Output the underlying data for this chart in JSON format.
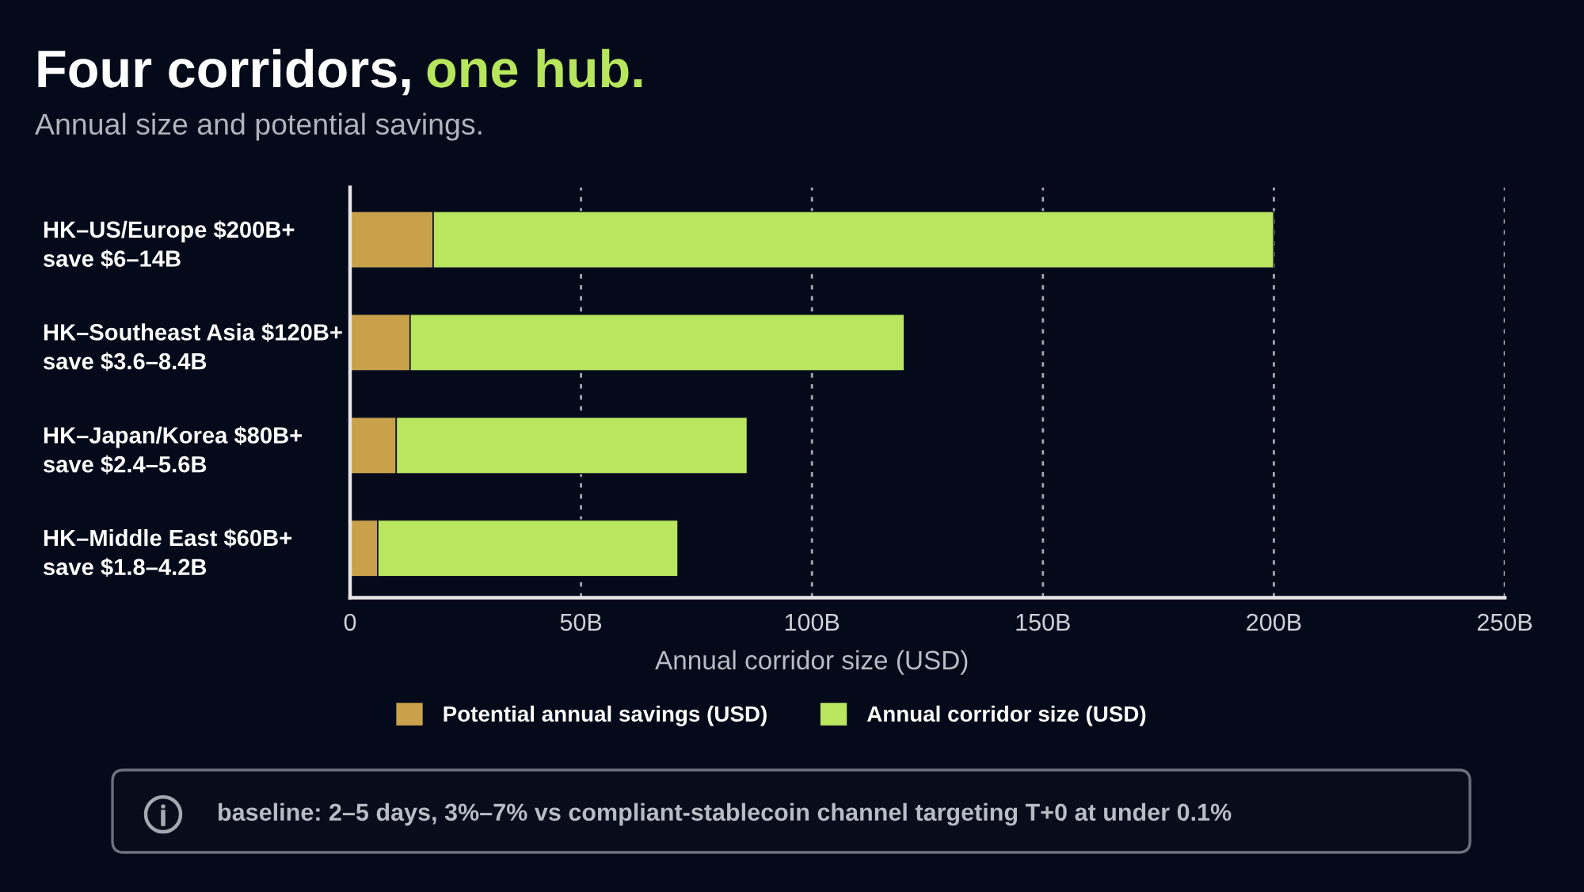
{
  "chart_data": {
    "type": "bar",
    "orientation": "horizontal",
    "stacked": true,
    "title": "Four corridors, one hub.",
    "subtitle": "Annual size and potential savings.",
    "xlabel": "Annual corridor size (USD)",
    "categories": [
      "HK–US/Europe $200B+\nsave $6–14B",
      "HK–Southeast Asia $120B+\nsave $3.6–8.4B",
      "HK–Japan/Korea $80B+\nsave $2.4–5.6B",
      "HK–Middle East $60B+\nsave $1.8–4.2B"
    ],
    "series": [
      {
        "name": "Potential annual savings (USD)",
        "color": "#c9a14b",
        "values": [
          18,
          13,
          10,
          6
        ]
      },
      {
        "name": "Annual corridor size (USD)",
        "color": "#b9e55f",
        "values": [
          182,
          107,
          76,
          65
        ]
      }
    ],
    "xlim": [
      0,
      250
    ],
    "xticks": [
      0,
      {
        "value": 50,
        "label": "50B"
      },
      {
        "value": 100,
        "label": "100B"
      },
      {
        "value": 150,
        "label": "150B"
      },
      {
        "value": 200,
        "label": "200B"
      },
      {
        "value": 250,
        "label": "250B"
      }
    ],
    "grid": "x",
    "legend": "bottom",
    "annotations": [
      "baseline: 2–5 days, 3%–7% vs compliant-stablecoin channel targeting T+0 at under 0.1%"
    ]
  }
}
